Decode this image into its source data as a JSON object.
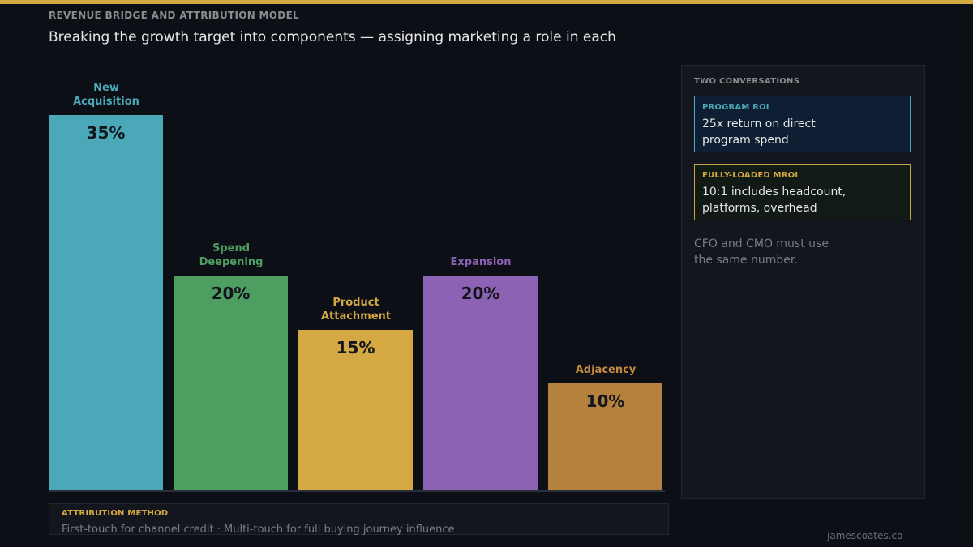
{
  "header": {
    "eyebrow": "REVENUE BRIDGE AND ATTRIBUTION MODEL",
    "subtitle": "Breaking the growth target into components — assigning marketing a role in each"
  },
  "chart_data": {
    "type": "bar",
    "categories": [
      "New Acquisition",
      "Spend Deepening",
      "Product Attachment",
      "Expansion",
      "Adjacency"
    ],
    "label_lines": [
      [
        "New",
        "Acquisition"
      ],
      [
        "Spend",
        "Deepening"
      ],
      [
        "Product",
        "Attachment"
      ],
      [
        "Expansion"
      ],
      [
        "Adjacency"
      ]
    ],
    "values": [
      35,
      20,
      15,
      20,
      10
    ],
    "value_labels": [
      "35%",
      "20%",
      "15%",
      "20%",
      "10%"
    ],
    "colors": [
      "#4aa8b8",
      "#4e9e62",
      "#d4a843",
      "#8b62b4",
      "#b5823e"
    ],
    "label_colors": [
      "#4aa8b8",
      "#4e9e62",
      "#d4a843",
      "#8b62b4",
      "#c48a3f"
    ],
    "ylim": [
      0,
      35
    ],
    "grid": false
  },
  "side_panel": {
    "title": "TWO CONVERSATIONS",
    "program_roi": {
      "heading": "PROGRAM ROI",
      "body": "25x return on direct program spend"
    },
    "fully_loaded": {
      "heading": "FULLY-LOADED MROI",
      "body": "10:1 includes headcount, platforms, overhead"
    },
    "note": "CFO and CMO must use the same number."
  },
  "attribution": {
    "title": "ATTRIBUTION METHOD",
    "text": "First-touch for channel credit  ·  Multi-touch for full buying journey influence"
  },
  "footer": {
    "credit": "jamescoates.co"
  }
}
